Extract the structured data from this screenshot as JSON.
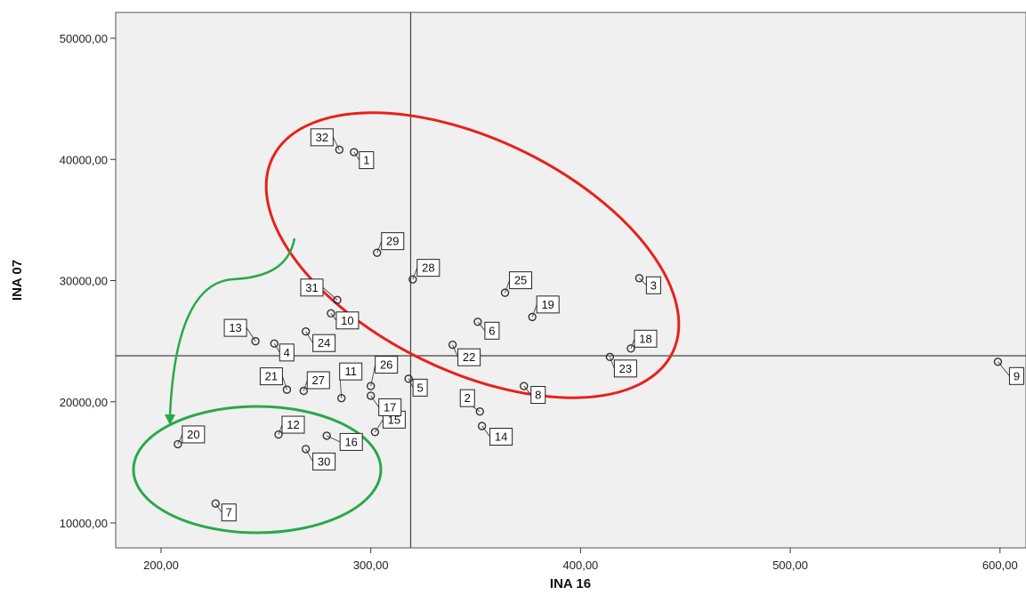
{
  "chart_data": {
    "type": "scatter",
    "title": "",
    "xlabel": "INA 16",
    "ylabel": "INA 07",
    "xlim": [
      180,
      605
    ],
    "ylim": [
      8000,
      52500
    ],
    "x_ticks": [
      200,
      300,
      400,
      500,
      600
    ],
    "y_ticks": [
      10000,
      20000,
      30000,
      40000,
      50000
    ],
    "x_tick_labels": [
      "200,00",
      "300,00",
      "400,00",
      "500,00",
      "600,00"
    ],
    "y_tick_labels": [
      "10000,00",
      "20000,00",
      "30000,00",
      "40000,00",
      "50000,00"
    ],
    "reference_lines": {
      "x": 319,
      "y": 23800
    },
    "grid": false,
    "legend": "none",
    "colors": {
      "plot_bg": "#f0f0f0",
      "point": "#333333",
      "red_ellipse": "#e8201c",
      "green_shapes": "#2aa84a"
    },
    "points": [
      {
        "id": "1",
        "x": 292,
        "y": 40600
      },
      {
        "id": "2",
        "x": 352,
        "y": 19200
      },
      {
        "id": "3",
        "x": 428,
        "y": 30200
      },
      {
        "id": "4",
        "x": 254,
        "y": 24800
      },
      {
        "id": "5",
        "x": 318,
        "y": 21900
      },
      {
        "id": "6",
        "x": 351,
        "y": 26600
      },
      {
        "id": "7",
        "x": 226,
        "y": 11600
      },
      {
        "id": "8",
        "x": 373,
        "y": 21300
      },
      {
        "id": "9",
        "x": 599,
        "y": 23300
      },
      {
        "id": "10",
        "x": 281,
        "y": 27300
      },
      {
        "id": "11",
        "x": 286,
        "y": 20300
      },
      {
        "id": "12",
        "x": 256,
        "y": 17300
      },
      {
        "id": "13",
        "x": 245,
        "y": 25000
      },
      {
        "id": "14",
        "x": 353,
        "y": 18000
      },
      {
        "id": "15",
        "x": 302,
        "y": 17500
      },
      {
        "id": "16",
        "x": 279,
        "y": 17200
      },
      {
        "id": "17",
        "x": 300,
        "y": 20500
      },
      {
        "id": "18",
        "x": 424,
        "y": 24400
      },
      {
        "id": "19",
        "x": 377,
        "y": 27000
      },
      {
        "id": "20",
        "x": 208,
        "y": 16500
      },
      {
        "id": "21",
        "x": 260,
        "y": 21000
      },
      {
        "id": "22",
        "x": 339,
        "y": 24700
      },
      {
        "id": "23",
        "x": 414,
        "y": 23700
      },
      {
        "id": "24",
        "x": 269,
        "y": 25800
      },
      {
        "id": "25",
        "x": 364,
        "y": 29000
      },
      {
        "id": "26",
        "x": 300,
        "y": 21300
      },
      {
        "id": "27",
        "x": 268,
        "y": 20900
      },
      {
        "id": "28",
        "x": 320,
        "y": 30100
      },
      {
        "id": "29",
        "x": 303,
        "y": 32300
      },
      {
        "id": "30",
        "x": 269,
        "y": 16100
      },
      {
        "id": "31",
        "x": 284,
        "y": 28400
      },
      {
        "id": "32",
        "x": 285,
        "y": 40800
      }
    ]
  }
}
